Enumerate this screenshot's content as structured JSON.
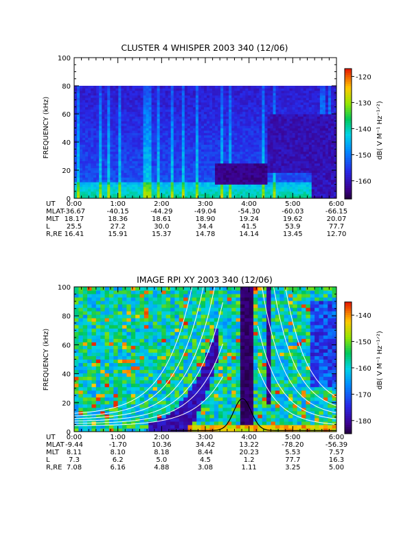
{
  "chart_data": [
    {
      "type": "heatmap",
      "title": "CLUSTER 4 WHISPER 2003 340 (12/06)",
      "ylabel": "FREQUENCY (kHz)",
      "ylim": [
        0,
        100
      ],
      "yticks": [
        "0",
        "20",
        "40",
        "60",
        "80",
        "100"
      ],
      "xlim": [
        "0:00",
        "6:00"
      ],
      "data_max_frequency": 80,
      "colorbar": {
        "label": "dB( V M⁻¹ Hz⁻¹ᐟ²)",
        "ticks": [
          "-120",
          "-130",
          "-140",
          "-150",
          "-160"
        ],
        "range": [
          -167,
          -117
        ]
      },
      "ephemeris": {
        "row_labels": [
          "UT",
          "MLAT",
          "MLT",
          "L",
          "R,RE"
        ],
        "UT": [
          "0:00",
          "1:00",
          "2:00",
          "3:00",
          "4:00",
          "5:00",
          "6:00"
        ],
        "MLAT": [
          "-36.67",
          "-40.15",
          "-44.29",
          "-49.04",
          "-54.30",
          "-60.03",
          "-66.15"
        ],
        "MLT": [
          "18.17",
          "18.36",
          "18.61",
          "18.90",
          "19.24",
          "19.62",
          "20.07"
        ],
        "L": [
          "25.5",
          "27.2",
          "30.0",
          "34.4",
          "41.5",
          "53.9",
          "77.7"
        ],
        "R,RE": [
          "16.41",
          "15.91",
          "15.37",
          "14.78",
          "14.14",
          "13.45",
          "12.70"
        ]
      }
    },
    {
      "type": "heatmap",
      "title": "IMAGE RPI XY 2003 340 (12/06)",
      "ylabel": "FREQUENCY (kHz)",
      "ylim": [
        0,
        100
      ],
      "yticks": [
        "0",
        "20",
        "40",
        "60",
        "80",
        "100"
      ],
      "xlim": [
        "0:00",
        "6:00"
      ],
      "colorbar": {
        "label": "dB( V M⁻¹ Hz⁻¹ᐟ²)",
        "ticks": [
          "-140",
          "-150",
          "-160",
          "-170",
          "-180"
        ],
        "range": [
          -185,
          -135
        ]
      },
      "black_curve_peak": {
        "time_hours": 3.85,
        "frequency_khz": 22
      },
      "ephemeris": {
        "row_labels": [
          "UT",
          "MLAT",
          "MLT",
          "L",
          "R,RE"
        ],
        "UT": [
          "0:00",
          "1:00",
          "2:00",
          "3:00",
          "4:00",
          "5:00",
          "6:00"
        ],
        "MLAT": [
          "-9.44",
          "-1.70",
          "10.36",
          "34.42",
          "13.22",
          "-78.20",
          "-56.39"
        ],
        "MLT": [
          "8.11",
          "8.10",
          "8.18",
          "8.44",
          "20.23",
          "5.53",
          "7.57"
        ],
        "L": [
          "7.3",
          "6.2",
          "5.0",
          "4.5",
          "1.2",
          "77.7",
          "16.3"
        ],
        "R,RE": [
          "7.08",
          "6.16",
          "4.88",
          "3.08",
          "1.11",
          "3.25",
          "5.00"
        ]
      }
    }
  ]
}
